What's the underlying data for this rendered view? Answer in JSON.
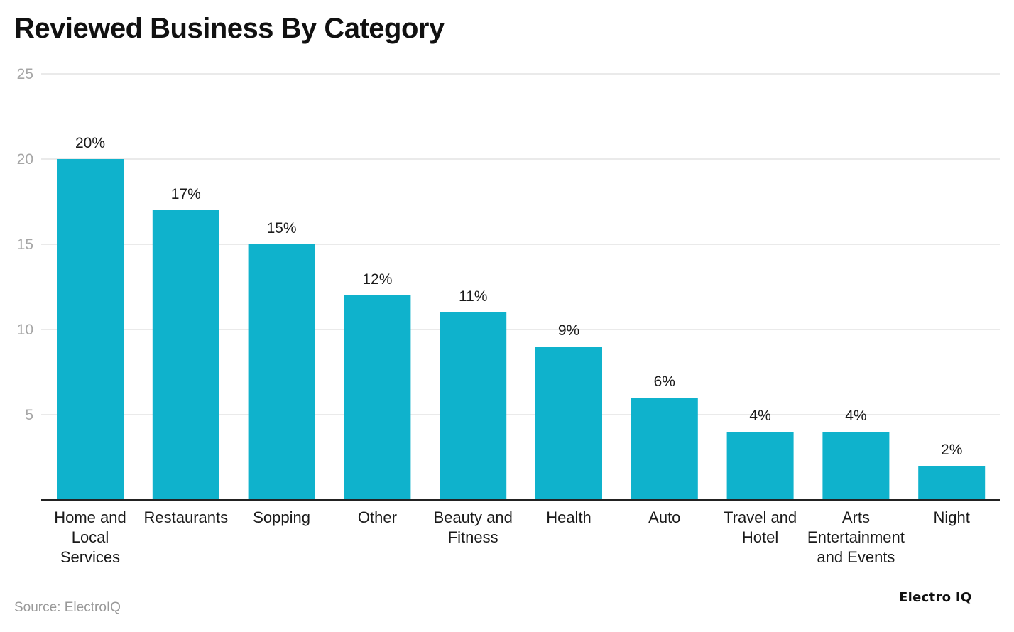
{
  "chart_data": {
    "type": "bar",
    "title": "Reviewed Business By Category",
    "xlabel": "",
    "ylabel": "",
    "ylim": [
      0,
      25
    ],
    "yticks": [
      5,
      10,
      15,
      20,
      25
    ],
    "grid": true,
    "categories": [
      [
        "Home and",
        "Local",
        "Services"
      ],
      [
        "Restaurants"
      ],
      [
        "Sopping"
      ],
      [
        "Other"
      ],
      [
        "Beauty and",
        "Fitness"
      ],
      [
        "Health"
      ],
      [
        "Auto"
      ],
      [
        "Travel and",
        "Hotel"
      ],
      [
        "Arts",
        "Entertainment",
        "and Events"
      ],
      [
        "Night"
      ]
    ],
    "values": [
      20,
      17,
      15,
      12,
      11,
      9,
      6,
      4,
      4,
      2
    ],
    "value_labels": [
      "20%",
      "17%",
      "15%",
      "12%",
      "11%",
      "9%",
      "6%",
      "4%",
      "4%",
      "2%"
    ],
    "colors": {
      "bar": "#0fb2cc",
      "grid": "#e3e3e3",
      "axis": "#222222",
      "tick_text": "#a6a6a6",
      "label_text": "#1a1a1a"
    }
  },
  "footer": {
    "source": "Source: ElectroIQ",
    "brand": "Electro IQ"
  }
}
